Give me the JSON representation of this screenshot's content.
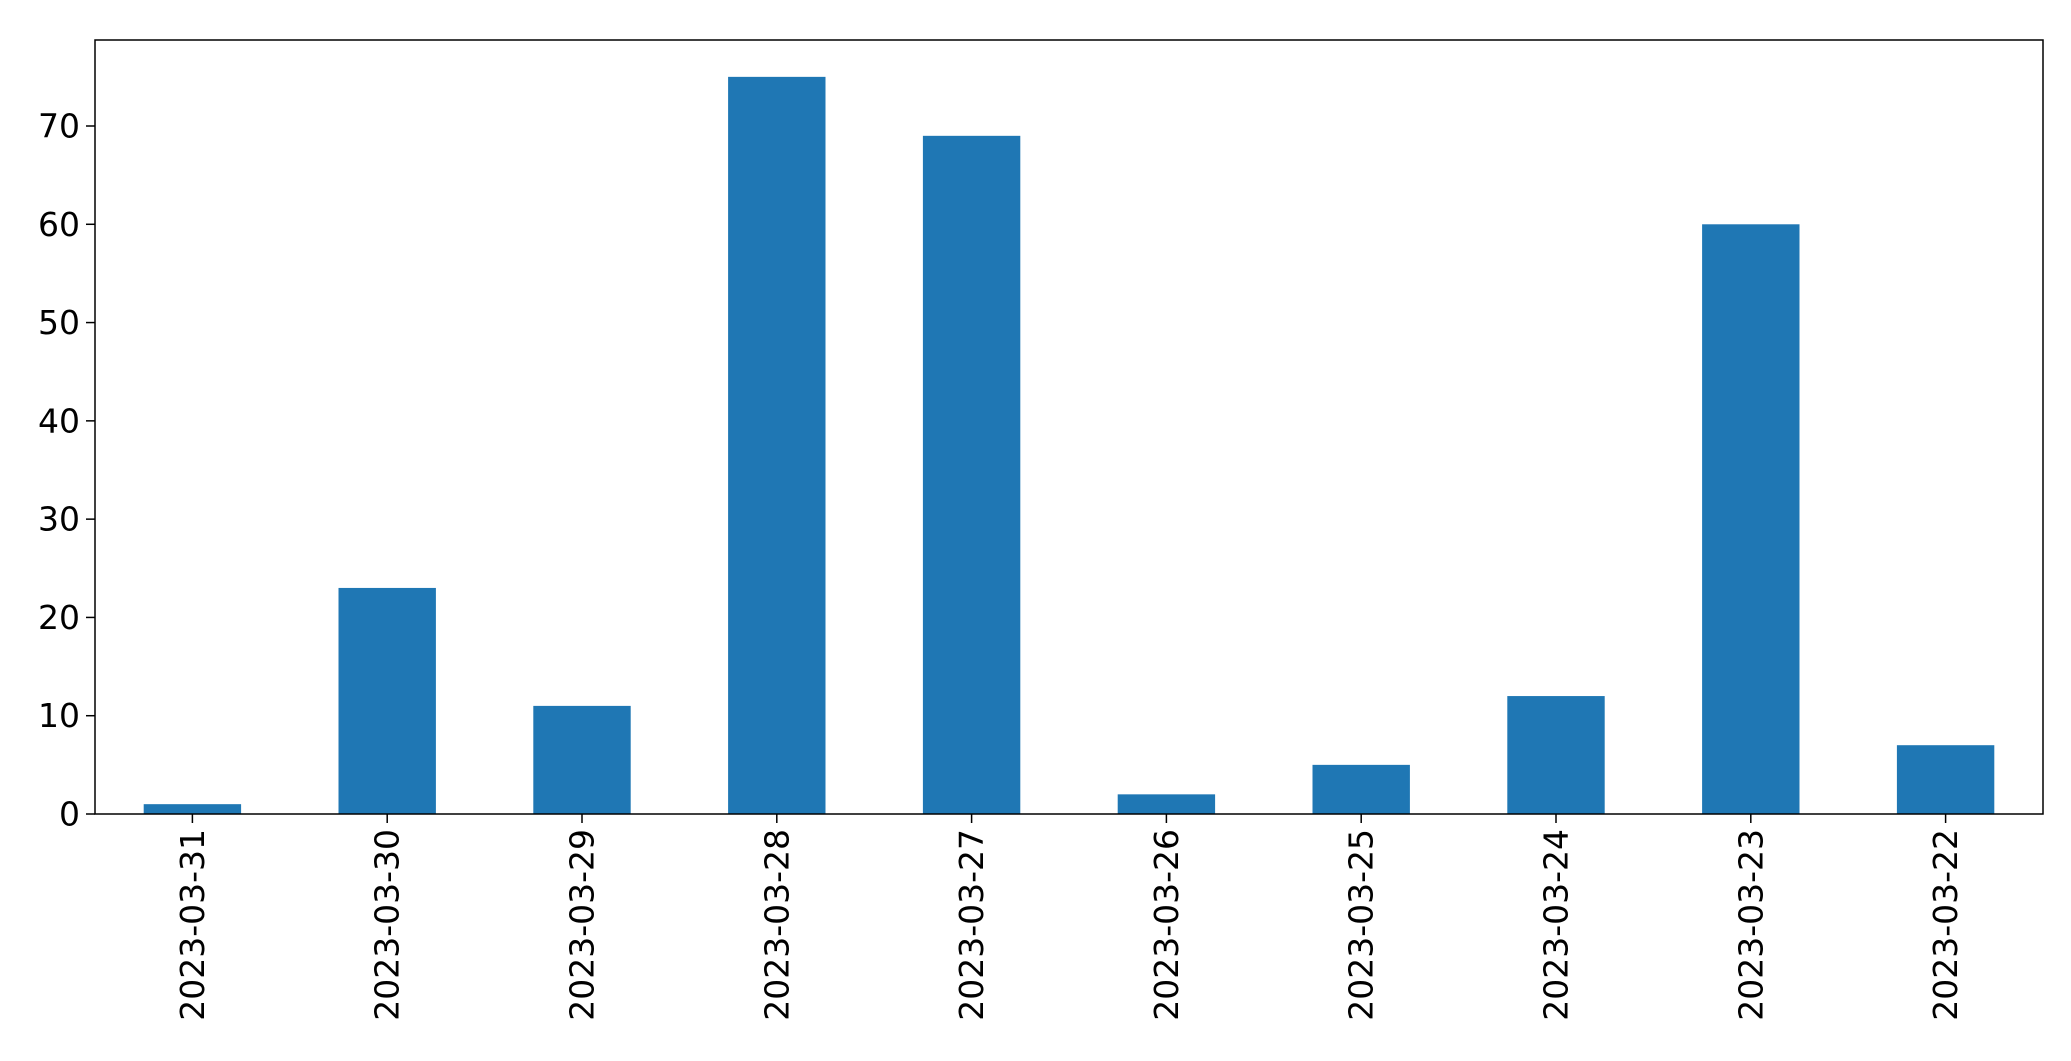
{
  "chart_data": {
    "type": "bar",
    "categories": [
      "2023-03-31",
      "2023-03-30",
      "2023-03-29",
      "2023-03-28",
      "2023-03-27",
      "2023-03-26",
      "2023-03-25",
      "2023-03-24",
      "2023-03-23",
      "2023-03-22"
    ],
    "values": [
      1,
      23,
      11,
      75,
      69,
      2,
      5,
      12,
      60,
      7
    ],
    "title": "",
    "xlabel": "",
    "ylabel": "",
    "ylim": [
      0,
      78.75
    ],
    "yticks": [
      0,
      10,
      20,
      30,
      40,
      50,
      60,
      70
    ],
    "bar_color": "#1f77b4",
    "grid": false,
    "x_tick_rotation": "vertical"
  }
}
